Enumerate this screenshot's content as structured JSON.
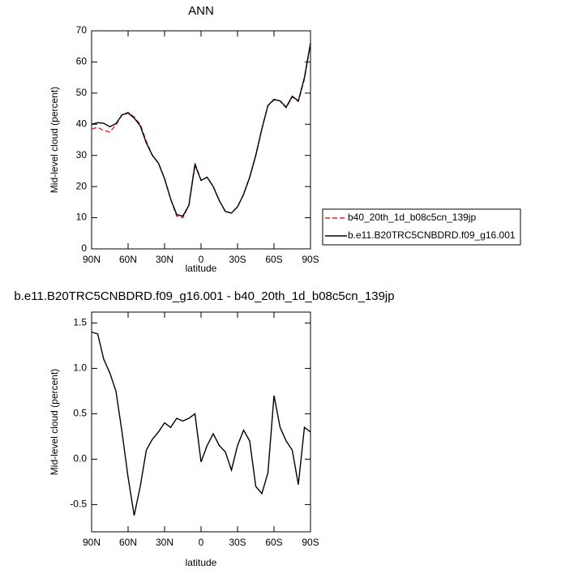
{
  "chart_data": [
    {
      "type": "line",
      "title": "ANN",
      "x_label": "latitude",
      "y_label": "Mid-level cloud (percent)",
      "x": [
        90,
        85,
        80,
        75,
        70,
        65,
        60,
        55,
        50,
        45,
        40,
        35,
        30,
        25,
        20,
        15,
        10,
        5,
        0,
        -5,
        -10,
        -15,
        -20,
        -25,
        -30,
        -35,
        -40,
        -45,
        -50,
        -55,
        -60,
        -65,
        -70,
        -75,
        -80,
        -85,
        -90
      ],
      "xlim": [
        90,
        -90
      ],
      "xticks": [
        {
          "value": 90,
          "label": "90N"
        },
        {
          "value": 60,
          "label": "60N"
        },
        {
          "value": 30,
          "label": "30N"
        },
        0,
        {
          "value": -30,
          "label": "30S"
        },
        {
          "value": -60,
          "label": "60S"
        },
        {
          "value": -90,
          "label": "90S"
        }
      ],
      "ylim": [
        0,
        70
      ],
      "yticks": [
        0,
        10,
        20,
        30,
        40,
        50,
        60,
        70
      ],
      "legend": "right",
      "series": [
        {
          "name": "b40_20th_1d_b08c5cn_139jp",
          "color": "#d62728",
          "dash": true,
          "values": [
            38.5,
            39,
            38,
            37.5,
            39.8,
            43,
            43.8,
            42.3,
            40,
            34.5,
            30,
            27.5,
            22.5,
            16,
            10.5,
            10,
            14,
            27.5,
            22,
            23,
            20,
            15.5,
            12,
            11.5,
            13.5,
            17.5,
            23,
            30,
            38.5,
            46,
            47.8,
            47.5,
            45.3,
            48.8,
            47.3,
            54.5,
            66
          ]
        },
        {
          "name": "b.e11.B20TRC5CNBDRD.f09_g16.001",
          "color": "#000000",
          "dash": false,
          "values": [
            40,
            40.5,
            40.3,
            39.2,
            40.2,
            43,
            43.6,
            42,
            39.5,
            34,
            30,
            27.5,
            22.5,
            16,
            11,
            10.5,
            14,
            27,
            22,
            23,
            20,
            15.5,
            12,
            11.5,
            13.5,
            17.5,
            23,
            30,
            38.5,
            46,
            48,
            47.5,
            45.5,
            49,
            47.5,
            55,
            66
          ]
        }
      ]
    },
    {
      "type": "line",
      "title": "b.e11.B20TRC5CNBDRD.f09_g16.001 - b40_20th_1d_b08c5cn_139jp",
      "x_label": "latitude",
      "y_label": "Mid-level cloud (percent)",
      "x": [
        90,
        85,
        80,
        75,
        70,
        65,
        60,
        55,
        50,
        45,
        40,
        35,
        30,
        25,
        20,
        15,
        10,
        5,
        0,
        -5,
        -10,
        -15,
        -20,
        -25,
        -30,
        -35,
        -40,
        -45,
        -50,
        -55,
        -60,
        -65,
        -70,
        -75,
        -80,
        -85,
        -90
      ],
      "xlim": [
        90,
        -90
      ],
      "xticks": [
        {
          "value": 90,
          "label": "90N"
        },
        {
          "value": 60,
          "label": "60N"
        },
        {
          "value": 30,
          "label": "30N"
        },
        0,
        {
          "value": -30,
          "label": "30S"
        },
        {
          "value": -60,
          "label": "60S"
        },
        {
          "value": -90,
          "label": "90S"
        }
      ],
      "ylim": [
        -0.8,
        1.62
      ],
      "yticks": [
        -0.5,
        {
          "value": 0,
          "label": "0.0"
        },
        0.5,
        {
          "value": 1,
          "label": "1.0"
        },
        1.5
      ],
      "series": [
        {
          "color": "#000000",
          "dash": false,
          "values": [
            1.4,
            1.38,
            1.1,
            0.95,
            0.75,
            0.3,
            -0.2,
            -0.62,
            -0.3,
            0.1,
            0.22,
            0.3,
            0.4,
            0.35,
            0.45,
            0.42,
            0.45,
            0.5,
            -0.03,
            0.15,
            0.28,
            0.15,
            0.08,
            -0.12,
            0.15,
            0.32,
            0.2,
            -0.3,
            -0.38,
            -0.15,
            0.7,
            0.35,
            0.2,
            0.1,
            -0.28,
            0.35,
            0.3
          ]
        }
      ]
    }
  ]
}
